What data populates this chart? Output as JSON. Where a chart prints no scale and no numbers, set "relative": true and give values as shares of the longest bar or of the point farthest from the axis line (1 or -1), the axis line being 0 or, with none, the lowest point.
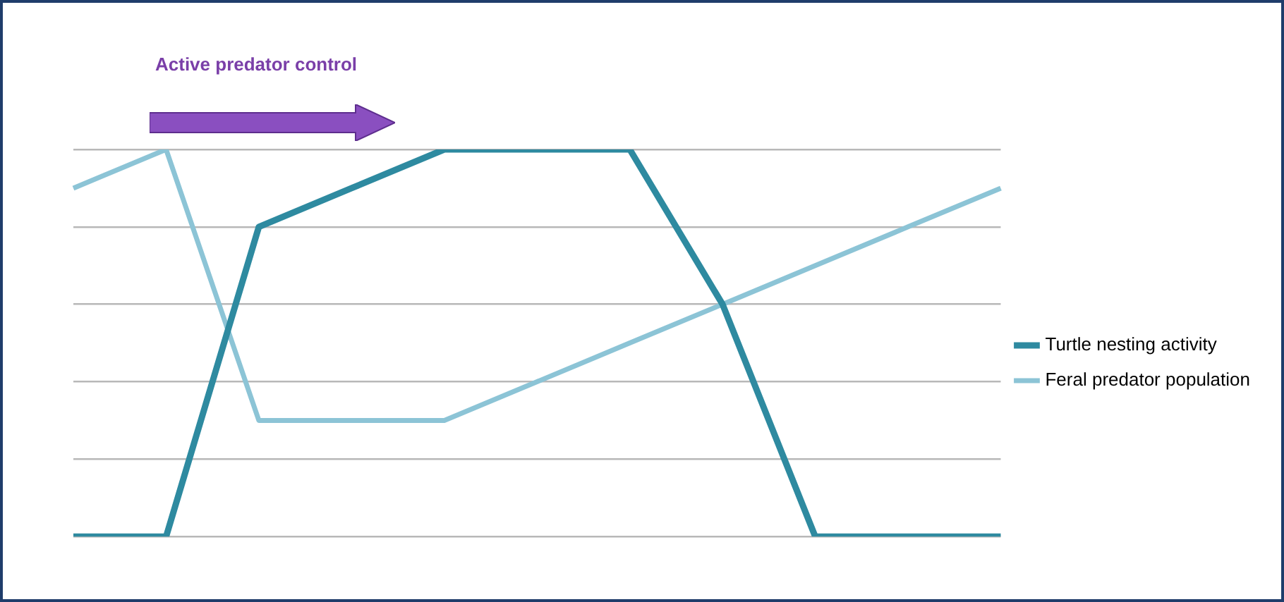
{
  "chart_data": {
    "type": "line",
    "relative": true,
    "categories": [
      null,
      null,
      null,
      null,
      null,
      null,
      null,
      null,
      null,
      null,
      null
    ],
    "series": [
      {
        "name": "Turtle nesting activity",
        "color": "#2e8aa0",
        "values": [
          0,
          0,
          0.8,
          0.9,
          1,
          1,
          1,
          0.6,
          0,
          0,
          0
        ]
      },
      {
        "name": "Feral predator population",
        "color": "#8cc4d6",
        "values": [
          0.9,
          1,
          0.3,
          0.3,
          0.3,
          0.4,
          0.5,
          0.6,
          0.7,
          0.8,
          0.9
        ]
      }
    ],
    "annotations": [
      "Active predator control"
    ],
    "grid": "y",
    "legend": "right",
    "marker": "none",
    "line_style": "solid"
  }
}
